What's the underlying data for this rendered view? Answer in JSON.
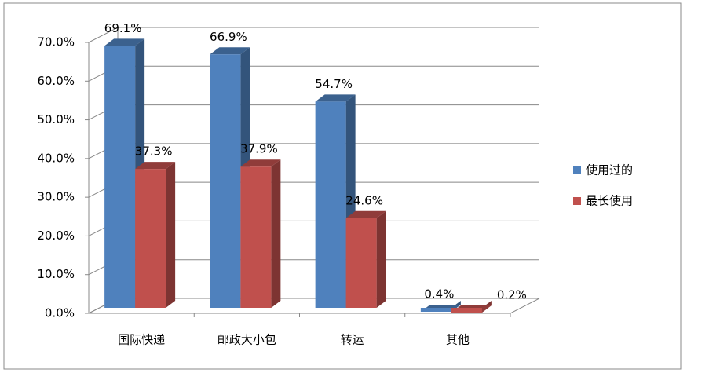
{
  "chart_data": {
    "type": "bar3d",
    "categories": [
      "国际快递",
      "邮政大小包",
      "转运",
      "其他"
    ],
    "series": [
      {
        "name": "使用过的",
        "color": "#4f81bd",
        "values": [
          69.1,
          66.9,
          54.7,
          0.4
        ],
        "value_labels": [
          "69.1%",
          "66.9%",
          "54.7%",
          "0.4%"
        ]
      },
      {
        "name": "最长使用",
        "color": "#c0504d",
        "values": [
          37.3,
          37.9,
          24.6,
          0.2
        ],
        "value_labels": [
          "37.3%",
          "37.9%",
          "24.6%",
          "0.2%"
        ]
      }
    ],
    "ylim": [
      0,
      70
    ],
    "yticks": [
      {
        "value": 0,
        "label": "0.0%"
      },
      {
        "value": 10,
        "label": "10.0%"
      },
      {
        "value": 20,
        "label": "20.0%"
      },
      {
        "value": 30,
        "label": "30.0%"
      },
      {
        "value": 40,
        "label": "40.0%"
      },
      {
        "value": 50,
        "label": "50.0%"
      },
      {
        "value": 60,
        "label": "60.0%"
      },
      {
        "value": 70,
        "label": "70.0%"
      }
    ],
    "grid": true,
    "legend": "right"
  }
}
